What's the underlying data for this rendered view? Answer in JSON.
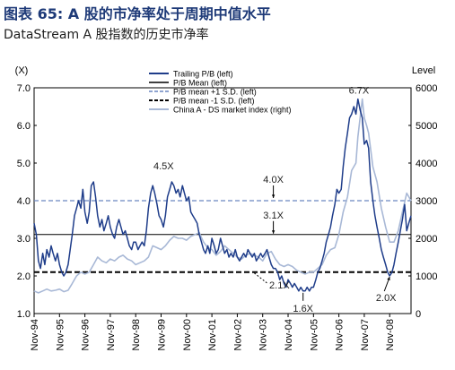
{
  "header": {
    "title": "图表  65: A 股的市净率处于周期中值水平",
    "subtitle": "DataStream A 股指数的历史市净率"
  },
  "colors": {
    "trailing": "#1f3d8a",
    "index": "#a8b8d6",
    "mean": "#000000",
    "plus_sd": "#6a86c0",
    "minus_sd": "#000000",
    "annotation_text": "#222222",
    "title": "#1e3a78"
  },
  "chart_data": {
    "type": "line",
    "title": "DataStream A 股指数的历史市净率",
    "left_axis": {
      "label": "(X)",
      "min": 1.0,
      "max": 7.0,
      "ticks": [
        "1.0",
        "2.0",
        "3.0",
        "4.0",
        "5.0",
        "6.0",
        "7.0"
      ]
    },
    "right_axis": {
      "label": "Level",
      "min": 0,
      "max": 6000,
      "ticks": [
        "0",
        "1000",
        "2000",
        "3000",
        "4000",
        "5000",
        "6000"
      ]
    },
    "x_categories": [
      "Nov-94",
      "Nov-95",
      "Nov-96",
      "Nov-97",
      "Nov-98",
      "Nov-99",
      "Nov-00",
      "Nov-01",
      "Nov-02",
      "Nov-03",
      "Nov-04",
      "Nov-05",
      "Nov-06",
      "Nov-07",
      "Nov-08"
    ],
    "x_range": [
      1994.83,
      2009.67
    ],
    "legend": [
      {
        "label": "Trailing P/B (left)",
        "style": "solid-thick",
        "color": "#1f3d8a"
      },
      {
        "label": "P/B Mean (left)",
        "style": "solid-thin",
        "color": "#000000"
      },
      {
        "label": "P/B mean +1 S.D. (left)",
        "style": "dashed-blue",
        "color": "#6a86c0"
      },
      {
        "label": "P/B mean -1 S.D. (left)",
        "style": "dashed-black",
        "color": "#000000"
      },
      {
        "label": "China A - DS market index (right)",
        "style": "solid-light",
        "color": "#a8b8d6"
      }
    ],
    "reference_lines": {
      "mean": 3.1,
      "plus_sd": 4.0,
      "minus_sd": 2.1
    },
    "annotations": [
      {
        "text": "6.7X",
        "x": 2007.83,
        "y": 6.7
      },
      {
        "text": "4.5X",
        "x": 2000.0,
        "y": 4.5
      },
      {
        "text": "4.0X",
        "x": 2004.25,
        "y": 4.0
      },
      {
        "text": "3.1X",
        "x": 2004.25,
        "y": 3.1
      },
      {
        "text": "2.1X",
        "x": 2003.5,
        "y": 2.1
      },
      {
        "text": "1.6X",
        "x": 2005.42,
        "y": 1.6
      },
      {
        "text": "2.0X",
        "x": 2008.83,
        "y": 2.0
      }
    ],
    "series": [
      {
        "name": "Trailing P/B (left)",
        "axis": "left",
        "points": [
          [
            1994.83,
            3.4
          ],
          [
            1994.92,
            3.1
          ],
          [
            1995.0,
            2.4
          ],
          [
            1995.08,
            2.2
          ],
          [
            1995.17,
            2.6
          ],
          [
            1995.25,
            2.3
          ],
          [
            1995.33,
            2.7
          ],
          [
            1995.42,
            2.5
          ],
          [
            1995.5,
            2.8
          ],
          [
            1995.58,
            2.6
          ],
          [
            1995.67,
            2.4
          ],
          [
            1995.75,
            2.6
          ],
          [
            1995.83,
            2.3
          ],
          [
            1995.92,
            2.1
          ],
          [
            1996.0,
            2.0
          ],
          [
            1996.08,
            2.1
          ],
          [
            1996.17,
            2.3
          ],
          [
            1996.25,
            2.7
          ],
          [
            1996.33,
            3.1
          ],
          [
            1996.42,
            3.6
          ],
          [
            1996.5,
            3.8
          ],
          [
            1996.58,
            4.0
          ],
          [
            1996.67,
            3.8
          ],
          [
            1996.75,
            4.3
          ],
          [
            1996.83,
            3.7
          ],
          [
            1996.92,
            3.4
          ],
          [
            1997.0,
            3.7
          ],
          [
            1997.08,
            4.4
          ],
          [
            1997.17,
            4.5
          ],
          [
            1997.25,
            4.1
          ],
          [
            1997.33,
            3.6
          ],
          [
            1997.42,
            3.3
          ],
          [
            1997.5,
            3.5
          ],
          [
            1997.58,
            3.2
          ],
          [
            1997.67,
            3.4
          ],
          [
            1997.75,
            3.6
          ],
          [
            1997.83,
            3.3
          ],
          [
            1997.92,
            3.1
          ],
          [
            1998.0,
            3.0
          ],
          [
            1998.08,
            3.3
          ],
          [
            1998.17,
            3.5
          ],
          [
            1998.25,
            3.3
          ],
          [
            1998.33,
            3.1
          ],
          [
            1998.42,
            3.2
          ],
          [
            1998.5,
            3.0
          ],
          [
            1998.58,
            2.8
          ],
          [
            1998.67,
            2.7
          ],
          [
            1998.75,
            2.9
          ],
          [
            1998.83,
            2.9
          ],
          [
            1998.92,
            2.7
          ],
          [
            1999.0,
            2.8
          ],
          [
            1999.08,
            2.9
          ],
          [
            1999.17,
            2.8
          ],
          [
            1999.25,
            3.2
          ],
          [
            1999.33,
            3.8
          ],
          [
            1999.42,
            4.2
          ],
          [
            1999.5,
            4.4
          ],
          [
            1999.58,
            4.2
          ],
          [
            1999.67,
            3.9
          ],
          [
            1999.75,
            3.6
          ],
          [
            1999.83,
            3.5
          ],
          [
            1999.92,
            3.3
          ],
          [
            2000.0,
            3.6
          ],
          [
            2000.08,
            4.1
          ],
          [
            2000.17,
            4.3
          ],
          [
            2000.25,
            4.5
          ],
          [
            2000.33,
            4.4
          ],
          [
            2000.42,
            4.2
          ],
          [
            2000.5,
            4.3
          ],
          [
            2000.58,
            4.1
          ],
          [
            2000.67,
            4.4
          ],
          [
            2000.75,
            4.2
          ],
          [
            2000.83,
            4.0
          ],
          [
            2000.92,
            4.1
          ],
          [
            2001.0,
            3.7
          ],
          [
            2001.08,
            3.6
          ],
          [
            2001.17,
            3.5
          ],
          [
            2001.25,
            3.4
          ],
          [
            2001.33,
            3.1
          ],
          [
            2001.42,
            2.9
          ],
          [
            2001.5,
            2.7
          ],
          [
            2001.58,
            2.6
          ],
          [
            2001.67,
            2.8
          ],
          [
            2001.75,
            2.6
          ],
          [
            2001.83,
            3.0
          ],
          [
            2001.92,
            2.8
          ],
          [
            2002.0,
            2.6
          ],
          [
            2002.08,
            2.7
          ],
          [
            2002.17,
            3.0
          ],
          [
            2002.25,
            2.8
          ],
          [
            2002.33,
            2.6
          ],
          [
            2002.42,
            2.7
          ],
          [
            2002.5,
            2.5
          ],
          [
            2002.58,
            2.6
          ],
          [
            2002.67,
            2.5
          ],
          [
            2002.75,
            2.7
          ],
          [
            2002.83,
            2.5
          ],
          [
            2002.92,
            2.4
          ],
          [
            2003.0,
            2.5
          ],
          [
            2003.08,
            2.6
          ],
          [
            2003.17,
            2.5
          ],
          [
            2003.25,
            2.7
          ],
          [
            2003.33,
            2.6
          ],
          [
            2003.42,
            2.5
          ],
          [
            2003.5,
            2.6
          ],
          [
            2003.58,
            2.4
          ],
          [
            2003.67,
            2.5
          ],
          [
            2003.75,
            2.6
          ],
          [
            2003.83,
            2.5
          ],
          [
            2003.92,
            2.6
          ],
          [
            2004.0,
            2.7
          ],
          [
            2004.08,
            2.5
          ],
          [
            2004.17,
            2.3
          ],
          [
            2004.25,
            2.2
          ],
          [
            2004.33,
            2.2
          ],
          [
            2004.42,
            2.1
          ],
          [
            2004.5,
            1.9
          ],
          [
            2004.58,
            2.0
          ],
          [
            2004.67,
            1.8
          ],
          [
            2004.75,
            1.7
          ],
          [
            2004.83,
            1.9
          ],
          [
            2004.92,
            1.8
          ],
          [
            2005.0,
            1.7
          ],
          [
            2005.08,
            1.8
          ],
          [
            2005.17,
            1.7
          ],
          [
            2005.25,
            1.6
          ],
          [
            2005.33,
            1.7
          ],
          [
            2005.42,
            1.6
          ],
          [
            2005.5,
            1.6
          ],
          [
            2005.58,
            1.7
          ],
          [
            2005.67,
            1.6
          ],
          [
            2005.75,
            1.7
          ],
          [
            2005.83,
            1.7
          ],
          [
            2005.92,
            1.9
          ],
          [
            2006.0,
            2.1
          ],
          [
            2006.08,
            2.2
          ],
          [
            2006.17,
            2.4
          ],
          [
            2006.25,
            2.6
          ],
          [
            2006.33,
            2.9
          ],
          [
            2006.42,
            3.1
          ],
          [
            2006.5,
            3.3
          ],
          [
            2006.58,
            3.6
          ],
          [
            2006.67,
            3.9
          ],
          [
            2006.75,
            4.3
          ],
          [
            2006.83,
            4.2
          ],
          [
            2006.92,
            4.3
          ],
          [
            2007.0,
            4.9
          ],
          [
            2007.08,
            5.4
          ],
          [
            2007.17,
            5.8
          ],
          [
            2007.25,
            6.2
          ],
          [
            2007.33,
            6.3
          ],
          [
            2007.42,
            6.5
          ],
          [
            2007.5,
            6.3
          ],
          [
            2007.58,
            6.7
          ],
          [
            2007.67,
            6.4
          ],
          [
            2007.75,
            6.2
          ],
          [
            2007.83,
            5.5
          ],
          [
            2007.92,
            5.6
          ],
          [
            2008.0,
            5.4
          ],
          [
            2008.08,
            4.5
          ],
          [
            2008.17,
            4.0
          ],
          [
            2008.25,
            3.6
          ],
          [
            2008.33,
            3.3
          ],
          [
            2008.42,
            3.0
          ],
          [
            2008.5,
            2.7
          ],
          [
            2008.58,
            2.5
          ],
          [
            2008.67,
            2.3
          ],
          [
            2008.75,
            2.1
          ],
          [
            2008.83,
            2.0
          ],
          [
            2008.92,
            2.1
          ],
          [
            2009.0,
            2.3
          ],
          [
            2009.08,
            2.6
          ],
          [
            2009.17,
            2.9
          ],
          [
            2009.25,
            3.2
          ],
          [
            2009.33,
            3.5
          ],
          [
            2009.42,
            3.9
          ],
          [
            2009.5,
            3.2
          ],
          [
            2009.58,
            3.4
          ],
          [
            2009.67,
            3.6
          ]
        ]
      },
      {
        "name": "China A - DS market index (right)",
        "axis": "right",
        "points": [
          [
            1994.83,
            600
          ],
          [
            1995.0,
            550
          ],
          [
            1995.17,
            600
          ],
          [
            1995.33,
            650
          ],
          [
            1995.5,
            600
          ],
          [
            1995.67,
            620
          ],
          [
            1995.83,
            650
          ],
          [
            1996.0,
            580
          ],
          [
            1996.17,
            620
          ],
          [
            1996.33,
            800
          ],
          [
            1996.5,
            1000
          ],
          [
            1996.67,
            1100
          ],
          [
            1996.83,
            1050
          ],
          [
            1997.0,
            1100
          ],
          [
            1997.17,
            1300
          ],
          [
            1997.33,
            1500
          ],
          [
            1997.5,
            1400
          ],
          [
            1997.67,
            1350
          ],
          [
            1997.83,
            1450
          ],
          [
            1998.0,
            1400
          ],
          [
            1998.17,
            1500
          ],
          [
            1998.33,
            1550
          ],
          [
            1998.5,
            1450
          ],
          [
            1998.67,
            1400
          ],
          [
            1998.83,
            1300
          ],
          [
            1999.0,
            1350
          ],
          [
            1999.17,
            1400
          ],
          [
            1999.33,
            1500
          ],
          [
            1999.5,
            1800
          ],
          [
            1999.67,
            1750
          ],
          [
            1999.83,
            1700
          ],
          [
            2000.0,
            1800
          ],
          [
            2000.17,
            1950
          ],
          [
            2000.33,
            2050
          ],
          [
            2000.5,
            2000
          ],
          [
            2000.67,
            2000
          ],
          [
            2000.83,
            1950
          ],
          [
            2001.0,
            2050
          ],
          [
            2001.17,
            2100
          ],
          [
            2001.33,
            2150
          ],
          [
            2001.5,
            1900
          ],
          [
            2001.67,
            1750
          ],
          [
            2001.83,
            1700
          ],
          [
            2002.0,
            1550
          ],
          [
            2002.17,
            1650
          ],
          [
            2002.33,
            1800
          ],
          [
            2002.5,
            1700
          ],
          [
            2002.67,
            1600
          ],
          [
            2002.83,
            1500
          ],
          [
            2003.0,
            1450
          ],
          [
            2003.17,
            1550
          ],
          [
            2003.33,
            1600
          ],
          [
            2003.5,
            1550
          ],
          [
            2003.67,
            1500
          ],
          [
            2003.83,
            1400
          ],
          [
            2004.0,
            1600
          ],
          [
            2004.17,
            1650
          ],
          [
            2004.33,
            1450
          ],
          [
            2004.5,
            1300
          ],
          [
            2004.67,
            1250
          ],
          [
            2004.83,
            1300
          ],
          [
            2005.0,
            1250
          ],
          [
            2005.17,
            1150
          ],
          [
            2005.33,
            1100
          ],
          [
            2005.5,
            1050
          ],
          [
            2005.67,
            1100
          ],
          [
            2005.83,
            1100
          ],
          [
            2006.0,
            1200
          ],
          [
            2006.17,
            1300
          ],
          [
            2006.33,
            1550
          ],
          [
            2006.5,
            1700
          ],
          [
            2006.67,
            1750
          ],
          [
            2006.83,
            2100
          ],
          [
            2007.0,
            2700
          ],
          [
            2007.17,
            3100
          ],
          [
            2007.33,
            3800
          ],
          [
            2007.5,
            4000
          ],
          [
            2007.58,
            4700
          ],
          [
            2007.75,
            5700
          ],
          [
            2007.83,
            5200
          ],
          [
            2007.92,
            5000
          ],
          [
            2008.0,
            4800
          ],
          [
            2008.17,
            3900
          ],
          [
            2008.33,
            3500
          ],
          [
            2008.5,
            2800
          ],
          [
            2008.67,
            2300
          ],
          [
            2008.83,
            1900
          ],
          [
            2009.0,
            1900
          ],
          [
            2009.17,
            2200
          ],
          [
            2009.33,
            2700
          ],
          [
            2009.5,
            3200
          ],
          [
            2009.67,
            3000
          ]
        ]
      }
    ]
  }
}
